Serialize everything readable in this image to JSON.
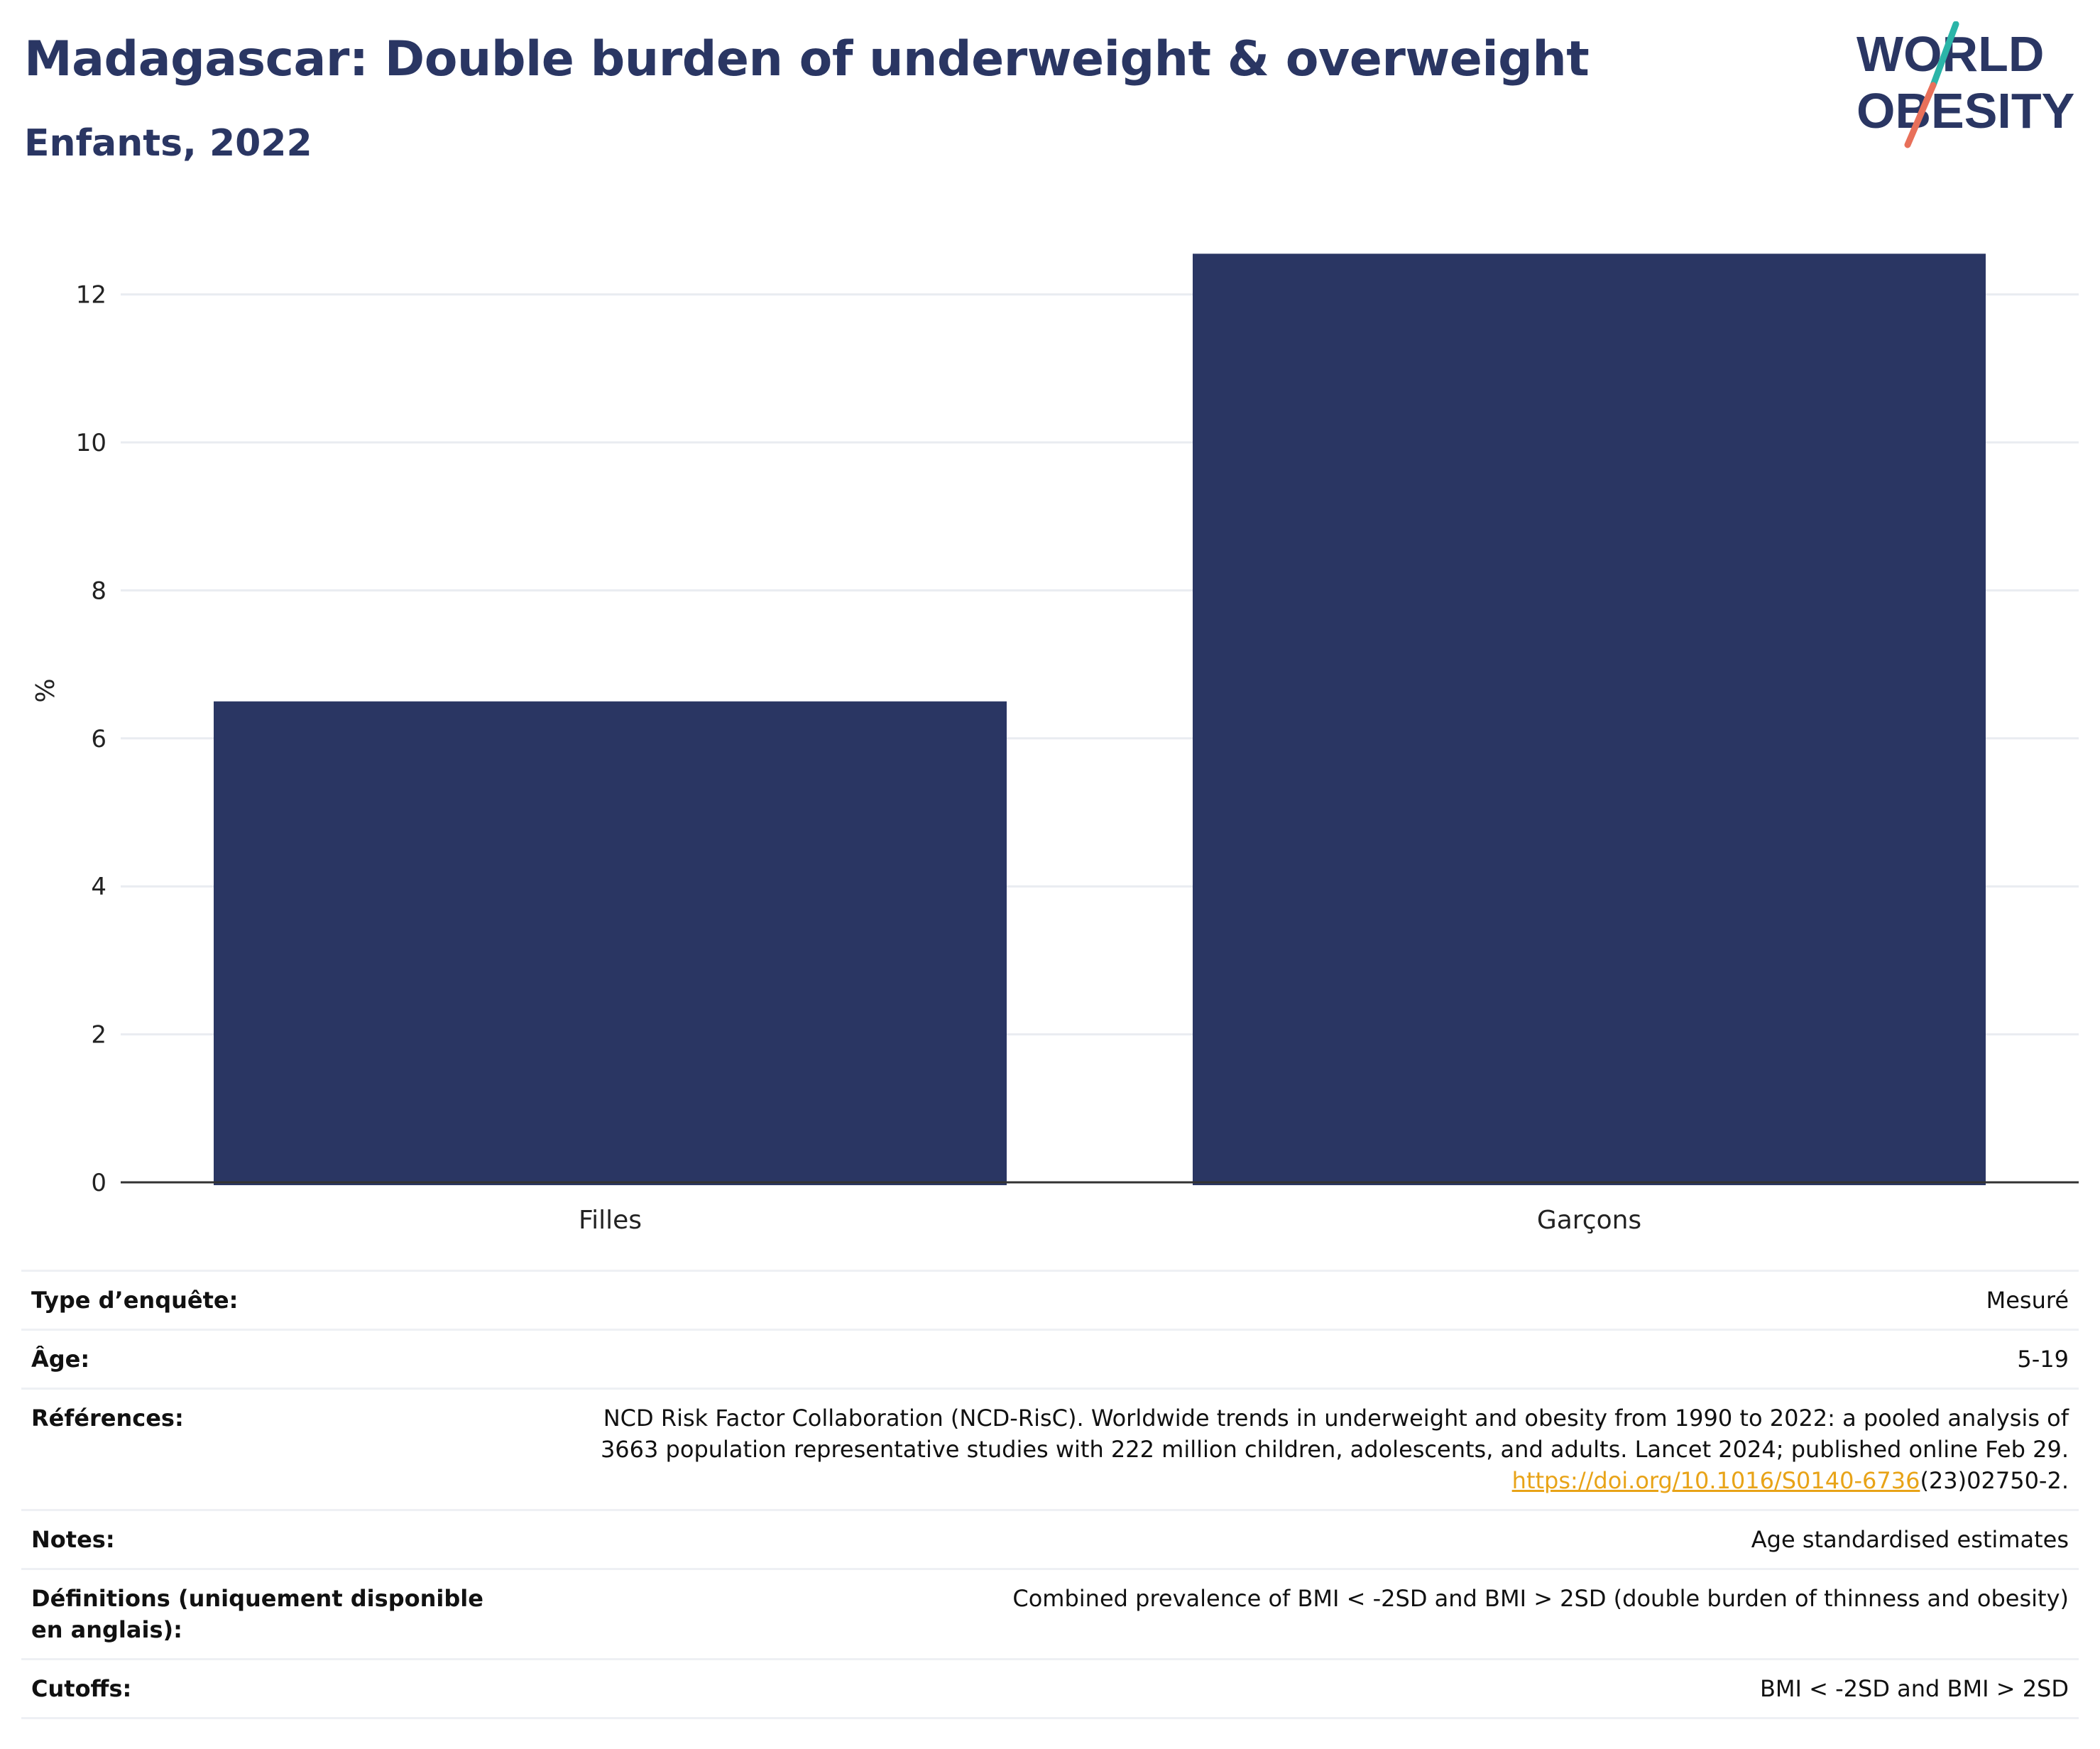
{
  "header": {
    "title": "Madagascar: Double burden of underweight & overweight",
    "subtitle": "Enfants, 2022"
  },
  "logo": {
    "line1": "WORLD",
    "line2": "OBESITY"
  },
  "colors": {
    "bar": "#2a3663",
    "title": "#2a3663",
    "grid": "#e9ecf1",
    "accent_teal": "#2bb5a8",
    "accent_coral": "#e8705a",
    "link": "#e8a317"
  },
  "chart_data": {
    "type": "bar",
    "categories": [
      "Filles",
      "Garçons"
    ],
    "values": [
      6.5,
      12.55
    ],
    "title": "Madagascar: Double burden of underweight & overweight",
    "subtitle": "Enfants, 2022",
    "xlabel": "",
    "ylabel": "%",
    "ylim": [
      0,
      13.1
    ],
    "yticks": [
      0,
      2,
      4,
      6,
      8,
      10,
      12
    ],
    "grid": true
  },
  "meta": {
    "survey_type_label": "Type d’enquête:",
    "survey_type_value": "Mesuré",
    "age_label": "Âge:",
    "age_value": "5-19",
    "references_label": "Références:",
    "references_line1": "NCD Risk Factor Collaboration (NCD-RisC). Worldwide trends in underweight and obesity from 1990 to 2022: a pooled analysis of",
    "references_line2": "3663 population representative studies with 222 million children, adolescents, and adults. Lancet 2024; published online Feb 29.",
    "references_link": "https://doi.org/10.1016/S0140-6736",
    "references_tail": "(23)02750-2.",
    "notes_label": "Notes:",
    "notes_value": "Age standardised estimates",
    "definitions_label": "Définitions (uniquement disponible en anglais):",
    "definitions_value": "Combined prevalence of BMI < -2SD and BMI > 2SD (double burden of thinness and obesity)",
    "cutoffs_label": "Cutoffs:",
    "cutoffs_value": "BMI < -2SD and BMI > 2SD"
  }
}
